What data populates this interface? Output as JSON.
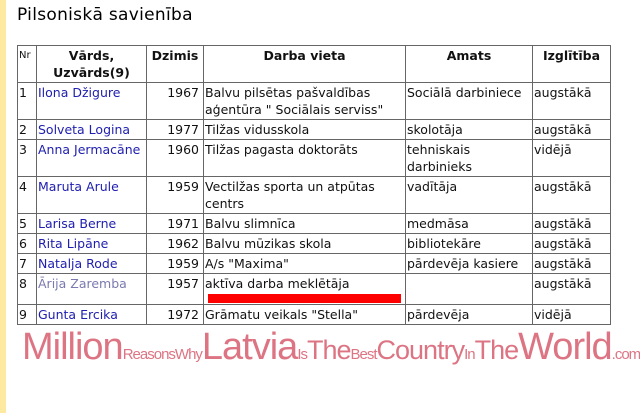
{
  "title": "Pilsoniskā savienība",
  "columns": [
    "Nr",
    "Vārds, Uzvārds(9)",
    "Dzimis",
    "Darba vieta",
    "Amats",
    "Izglītība"
  ],
  "rows": [
    {
      "nr": "1",
      "name": "Ilona Džigure",
      "year": "1967",
      "work": "Balvu pilsētas pašvaldības aģentūra \" Sociālais serviss\"",
      "position": "Sociālā darbiniece",
      "edu": "augstākā"
    },
    {
      "nr": "2",
      "name": "Solveta Logina",
      "year": "1977",
      "work": "Tilžas vidusskola",
      "position": "skolotāja",
      "edu": "augstākā"
    },
    {
      "nr": "3",
      "name": "Anna Jermacāne",
      "year": "1960",
      "work": "Tilžas pagasta doktorāts",
      "position": "tehniskais darbinieks",
      "edu": "vidējā"
    },
    {
      "nr": "4",
      "name": "Maruta Arule",
      "year": "1959",
      "work": "Vectilžas sporta un atpūtas centrs",
      "position": "vadītāja",
      "edu": "augstākā"
    },
    {
      "nr": "5",
      "name": "Larisa Berne",
      "year": "1971",
      "work": "Balvu slimnīca",
      "position": "medmāsa",
      "edu": "augstākā"
    },
    {
      "nr": "6",
      "name": "Rita Lipāne",
      "year": "1962",
      "work": "Balvu mūzikas skola",
      "position": "bibliotekāre",
      "edu": "augstākā"
    },
    {
      "nr": "7",
      "name": "Natalja Rode",
      "year": "1959",
      "work": "A/s \"Maxima\"",
      "position": "pārdevēja kasiere",
      "edu": "augstākā"
    },
    {
      "nr": "8",
      "name": "Ārija Zaremba",
      "year": "1957",
      "work": "aktīva darba meklētāja",
      "position": "",
      "edu": "augstākā"
    },
    {
      "nr": "9",
      "name": "Gunta Ercika",
      "year": "1972",
      "work": "Grāmatu veikals \"Stella\"",
      "position": "pārdevēja",
      "edu": "vidējā"
    }
  ],
  "highlight_color": "#ff0000",
  "watermark": "MillionReasonsWhyLatviaIsTheBestCountryInTheWorld.com"
}
